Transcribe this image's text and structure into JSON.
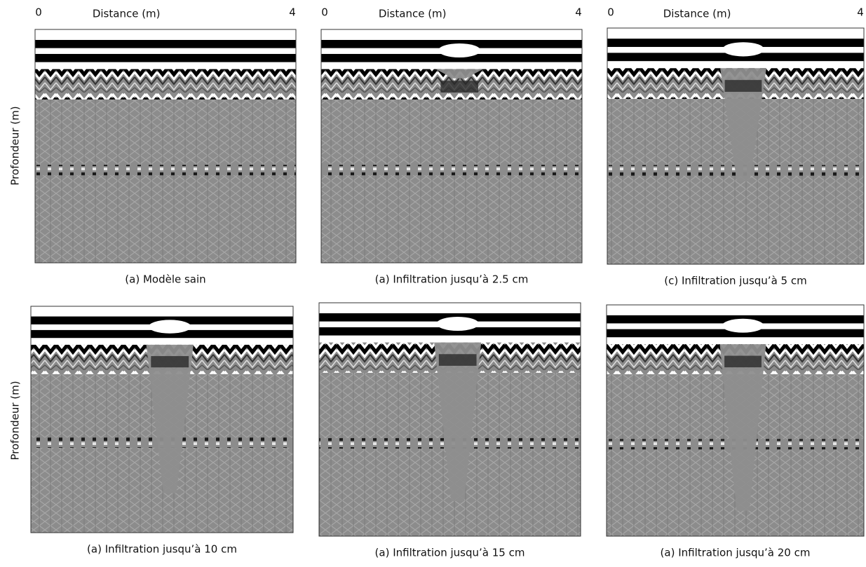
{
  "panels": [
    {
      "caption": "(a) Modèle sain",
      "x_start": "0",
      "x_label": "Distance (m)",
      "x_end": "4"
    },
    {
      "caption": "(a) Infiltration jusqu’à 2.5 cm",
      "x_start": "0",
      "x_label": "Distance (m)",
      "x_end": "4"
    },
    {
      "caption": "(c) Infiltration jusqu’à 5 cm",
      "x_start": "0",
      "x_label": "Distance (m)",
      "x_end": "4"
    },
    {
      "caption": "(a) Infiltration jusqu’à 10 cm"
    },
    {
      "caption": "(a) Infiltration jusqu’à 15 cm"
    },
    {
      "caption": "(a) Infiltration jusqu’à 20 cm"
    }
  ],
  "row_labels": [
    "Profondeur (m)",
    "Profondeur (m)"
  ]
}
